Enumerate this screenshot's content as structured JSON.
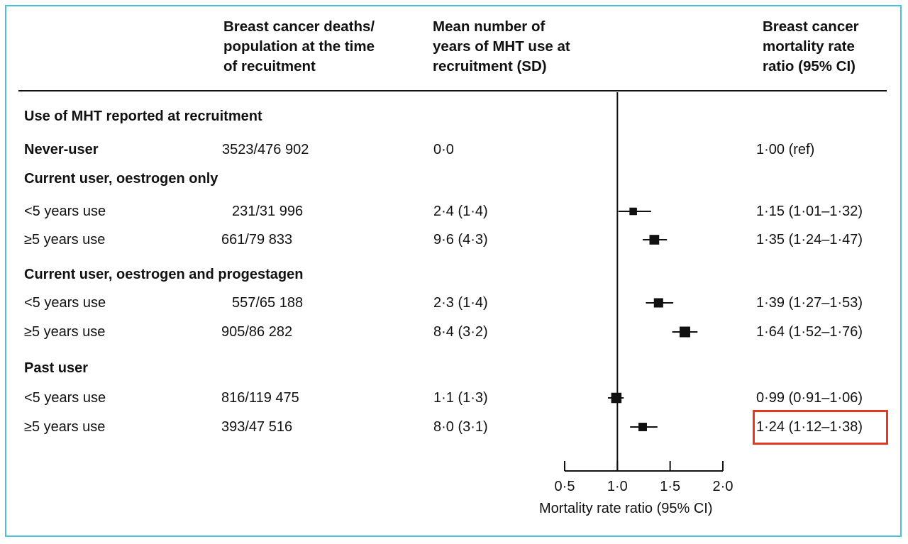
{
  "headers": {
    "col_deaths": "Breast cancer deaths/\npopulation at the time\nof recuitment",
    "col_years": "Mean number of\nyears of MHT use at\nrecruitment (SD)",
    "col_ratio": "Breast cancer\nmortality rate\nratio (95% CI)"
  },
  "rows": [
    {
      "label": "Use of MHT reported at recruitment",
      "deaths": "",
      "years": "",
      "ratio": ""
    },
    {
      "label": "Never-user",
      "deaths": "3523/476 902",
      "years": "0·0",
      "ratio": "1·00 (ref)"
    },
    {
      "label": "Current user, oestrogen only",
      "deaths": "",
      "years": "",
      "ratio": ""
    },
    {
      "label": "<5 years use",
      "deaths": "231/31 996",
      "years": "2·4 (1·4)",
      "ratio": "1·15 (1·01–1·32)"
    },
    {
      "label": "≥5 years use",
      "deaths": "661/79 833",
      "years": "9·6 (4·3)",
      "ratio": "1·35 (1·24–1·47)"
    },
    {
      "label": "Current user, oestrogen and progestagen",
      "deaths": "",
      "years": "",
      "ratio": ""
    },
    {
      "label": "<5 years use",
      "deaths": "557/65 188",
      "years": "2·3 (1·4)",
      "ratio": "1·39 (1·27–1·53)"
    },
    {
      "label": "≥5 years use",
      "deaths": "905/86 282",
      "years": "8·4 (3·2)",
      "ratio": "1·64 (1·52–1·76)"
    },
    {
      "label": "Past user",
      "deaths": "",
      "years": "",
      "ratio": ""
    },
    {
      "label": "<5 years use",
      "deaths": "816/119 475",
      "years": "1·1 (1·3)",
      "ratio": "0·99 (0·91–1·06)"
    },
    {
      "label": "≥5 years use",
      "deaths": "393/47 516",
      "years": "8·0 (3·1)",
      "ratio": "1·24 (1·12–1·38)"
    }
  ],
  "chart_data": {
    "type": "forest",
    "xlabel": "Mortality rate ratio (95% CI)",
    "xlim": [
      0.5,
      2.0
    ],
    "reference_line": 1.0,
    "ticks": [
      0.5,
      1.0,
      1.5,
      2.0
    ],
    "tick_labels": [
      "0·5",
      "1·0",
      "1·5",
      "2·0"
    ],
    "points": [
      {
        "row": 1,
        "estimate": 1.0,
        "lower": null,
        "upper": null,
        "weight": 0
      },
      {
        "row": 3,
        "estimate": 1.15,
        "lower": 1.01,
        "upper": 1.32,
        "weight": 231
      },
      {
        "row": 4,
        "estimate": 1.35,
        "lower": 1.24,
        "upper": 1.47,
        "weight": 661
      },
      {
        "row": 6,
        "estimate": 1.39,
        "lower": 1.27,
        "upper": 1.53,
        "weight": 557
      },
      {
        "row": 7,
        "estimate": 1.64,
        "lower": 1.52,
        "upper": 1.76,
        "weight": 905
      },
      {
        "row": 9,
        "estimate": 0.99,
        "lower": 0.91,
        "upper": 1.06,
        "weight": 816
      },
      {
        "row": 10,
        "estimate": 1.24,
        "lower": 1.12,
        "upper": 1.38,
        "weight": 393
      }
    ],
    "highlighted_row": 10
  }
}
